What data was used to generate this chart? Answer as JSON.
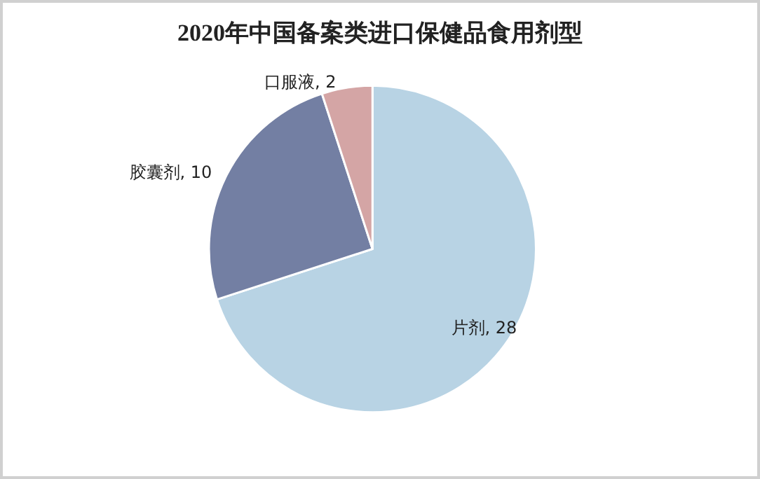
{
  "chart_data": {
    "type": "pie",
    "title": "2020年中国备案类进口保健品食用剂型",
    "categories": [
      "片剂",
      "胶囊剂",
      "口服液"
    ],
    "values": [
      28,
      10,
      2
    ],
    "value_labels": [
      ", 28",
      ", 10",
      ", 2"
    ],
    "colors": [
      "#b8d3e4",
      "#737fa3",
      "#d4a5a5"
    ],
    "legend": false
  }
}
